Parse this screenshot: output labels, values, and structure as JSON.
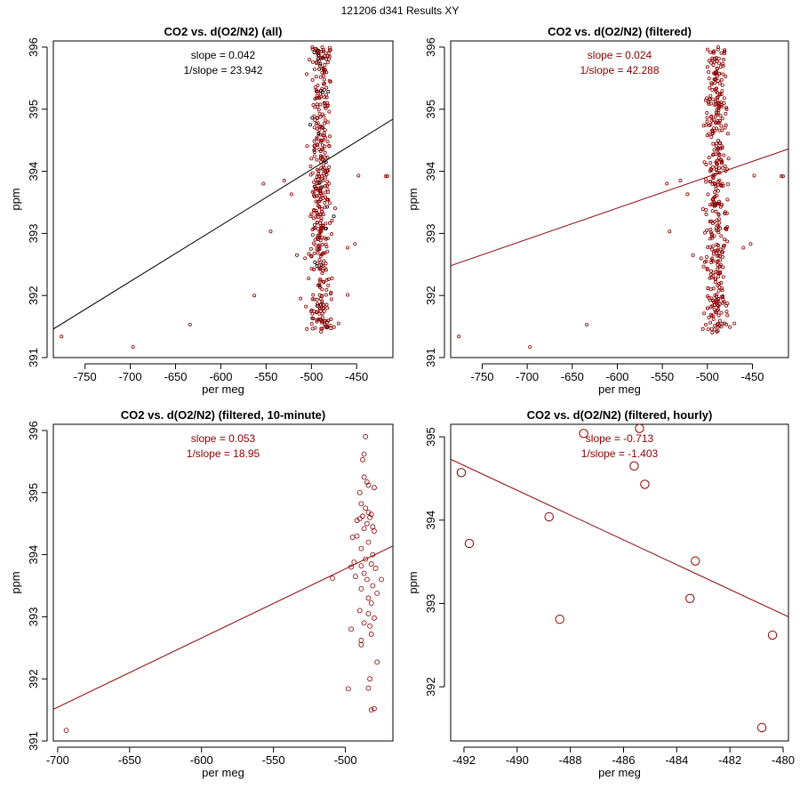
{
  "page_title": "121206   d341   Results XY",
  "colors": {
    "red": "#8b0000",
    "black": "#000000"
  },
  "chart_data": [
    {
      "type": "scatter",
      "title": "CO2 vs. d(O2/N2) (all)",
      "xlabel": "per meg",
      "ylabel": "ppm",
      "xlim": [
        -785,
        -410
      ],
      "ylim": [
        391,
        396.1
      ],
      "xticks": [
        -750,
        -700,
        -650,
        -600,
        -550,
        -500,
        -450
      ],
      "yticks": [
        391,
        392,
        393,
        394,
        395,
        396
      ],
      "stats": [
        "slope = 0.042",
        "1/slope = 23.942"
      ],
      "stats_color": "#000000",
      "line_color": "#000000",
      "line": {
        "x": [
          -785,
          -410
        ],
        "y": [
          391.46,
          394.84
        ]
      },
      "point_color": "#8b0000",
      "marker_radius": "small",
      "cluster": {
        "x_center": -490,
        "x_spread": 32,
        "y_range": [
          391.4,
          396
        ],
        "count": 420,
        "seed": 11
      },
      "points": [
        {
          "x": -776,
          "y": 391.34
        },
        {
          "x": -697,
          "y": 391.17
        },
        {
          "x": -634,
          "y": 391.53
        },
        {
          "x": -563,
          "y": 392.0
        },
        {
          "x": -553,
          "y": 393.8
        },
        {
          "x": -545,
          "y": 393.03
        },
        {
          "x": -530,
          "y": 393.85
        },
        {
          "x": -522,
          "y": 393.63
        },
        {
          "x": -516,
          "y": 392.65
        },
        {
          "x": -512,
          "y": 391.95
        },
        {
          "x": -507,
          "y": 392.6
        },
        {
          "x": -505,
          "y": 391.46
        },
        {
          "x": -460,
          "y": 392.77
        },
        {
          "x": -452,
          "y": 392.83
        },
        {
          "x": -448,
          "y": 393.93
        },
        {
          "x": -418,
          "y": 393.92
        },
        {
          "x": -416,
          "y": 393.92
        },
        {
          "x": -488,
          "y": 396.0
        },
        {
          "x": -493,
          "y": 395.93
        },
        {
          "x": -481,
          "y": 395.9
        },
        {
          "x": -475,
          "y": 391.49
        },
        {
          "x": -470,
          "y": 391.55
        },
        {
          "x": -460,
          "y": 392.01
        }
      ]
    },
    {
      "type": "scatter",
      "title": "CO2 vs. d(O2/N2) (filtered)",
      "xlabel": "per meg",
      "ylabel": "ppm",
      "xlim": [
        -785,
        -410
      ],
      "ylim": [
        391,
        396.1
      ],
      "xticks": [
        -750,
        -700,
        -650,
        -600,
        -550,
        -500,
        -450
      ],
      "yticks": [
        391,
        392,
        393,
        394,
        395,
        396
      ],
      "stats": [
        "slope = 0.024",
        "1/slope = 42.288"
      ],
      "stats_color": "#8b0000",
      "line_color": "#8b0000",
      "line": {
        "x": [
          -785,
          -410
        ],
        "y": [
          392.48,
          394.36
        ]
      },
      "point_color": "#8b0000",
      "marker_radius": "small",
      "cluster": {
        "x_center": -490,
        "x_spread": 32,
        "y_range": [
          391.4,
          396
        ],
        "count": 400,
        "seed": 29
      },
      "points": [
        {
          "x": -776,
          "y": 391.34
        },
        {
          "x": -697,
          "y": 391.17
        },
        {
          "x": -634,
          "y": 391.53
        },
        {
          "x": -545,
          "y": 393.8
        },
        {
          "x": -542,
          "y": 393.03
        },
        {
          "x": -530,
          "y": 393.85
        },
        {
          "x": -522,
          "y": 393.63
        },
        {
          "x": -516,
          "y": 392.65
        },
        {
          "x": -507,
          "y": 392.6
        },
        {
          "x": -505,
          "y": 391.46
        },
        {
          "x": -460,
          "y": 392.77
        },
        {
          "x": -452,
          "y": 392.83
        },
        {
          "x": -448,
          "y": 393.93
        },
        {
          "x": -418,
          "y": 393.92
        },
        {
          "x": -416,
          "y": 393.92
        },
        {
          "x": -488,
          "y": 396.0
        },
        {
          "x": -493,
          "y": 395.93
        },
        {
          "x": -481,
          "y": 395.9
        },
        {
          "x": -475,
          "y": 391.49
        },
        {
          "x": -470,
          "y": 391.55
        }
      ]
    },
    {
      "type": "scatter",
      "title": "CO2 vs. d(O2/N2) (filtered, 10-minute)",
      "xlabel": "per meg",
      "ylabel": "ppm",
      "xlim": [
        -703,
        -467
      ],
      "ylim": [
        391,
        396.1
      ],
      "xticks": [
        -700,
        -650,
        -600,
        -550,
        -500
      ],
      "yticks": [
        391,
        392,
        393,
        394,
        395,
        396
      ],
      "stats": [
        "slope = 0.053",
        "1/slope = 18.95"
      ],
      "stats_color": "#8b0000",
      "line_color": "#8b0000",
      "line": {
        "x": [
          -703,
          -467
        ],
        "y": [
          391.51,
          394.14
        ]
      },
      "point_color": "#8b0000",
      "marker_radius": "medium",
      "cluster": null,
      "points": [
        {
          "x": -694,
          "y": 391.17
        },
        {
          "x": -509,
          "y": 393.62
        },
        {
          "x": -498,
          "y": 391.84
        },
        {
          "x": -486,
          "y": 395.9
        },
        {
          "x": -487,
          "y": 395.62
        },
        {
          "x": -488,
          "y": 395.53
        },
        {
          "x": -487,
          "y": 395.25
        },
        {
          "x": -485,
          "y": 395.17
        },
        {
          "x": -484,
          "y": 395.12
        },
        {
          "x": -480,
          "y": 395.08
        },
        {
          "x": -490,
          "y": 395.0
        },
        {
          "x": -489,
          "y": 394.82
        },
        {
          "x": -486,
          "y": 394.75
        },
        {
          "x": -484,
          "y": 394.68
        },
        {
          "x": -482,
          "y": 394.65
        },
        {
          "x": -488,
          "y": 394.62
        },
        {
          "x": -490,
          "y": 394.58
        },
        {
          "x": -492,
          "y": 394.55
        },
        {
          "x": -483,
          "y": 394.6
        },
        {
          "x": -485,
          "y": 394.5
        },
        {
          "x": -481,
          "y": 394.45
        },
        {
          "x": -487,
          "y": 394.42
        },
        {
          "x": -480,
          "y": 394.38
        },
        {
          "x": -492,
          "y": 394.3
        },
        {
          "x": -495,
          "y": 394.28
        },
        {
          "x": -484,
          "y": 394.2
        },
        {
          "x": -489,
          "y": 394.1
        },
        {
          "x": -481,
          "y": 394.0
        },
        {
          "x": -486,
          "y": 393.93
        },
        {
          "x": -494,
          "y": 393.88
        },
        {
          "x": -482,
          "y": 393.85
        },
        {
          "x": -489,
          "y": 393.82
        },
        {
          "x": -496,
          "y": 393.8
        },
        {
          "x": -479,
          "y": 393.78
        },
        {
          "x": -487,
          "y": 393.7
        },
        {
          "x": -493,
          "y": 393.65
        },
        {
          "x": -485,
          "y": 393.6
        },
        {
          "x": -475,
          "y": 393.6
        },
        {
          "x": -481,
          "y": 393.5
        },
        {
          "x": -489,
          "y": 393.45
        },
        {
          "x": -478,
          "y": 393.38
        },
        {
          "x": -484,
          "y": 393.3
        },
        {
          "x": -482,
          "y": 393.22
        },
        {
          "x": -490,
          "y": 393.1
        },
        {
          "x": -484,
          "y": 393.05
        },
        {
          "x": -480,
          "y": 392.98
        },
        {
          "x": -487,
          "y": 392.9
        },
        {
          "x": -483,
          "y": 392.85
        },
        {
          "x": -496,
          "y": 392.8
        },
        {
          "x": -482,
          "y": 392.72
        },
        {
          "x": -489,
          "y": 392.62
        },
        {
          "x": -489,
          "y": 392.55
        },
        {
          "x": -478,
          "y": 392.27
        },
        {
          "x": -483,
          "y": 392.0
        },
        {
          "x": -484,
          "y": 391.85
        },
        {
          "x": -480,
          "y": 391.52
        },
        {
          "x": -482,
          "y": 391.5
        }
      ]
    },
    {
      "type": "scatter",
      "title": "CO2 vs. d(O2/N2) (filtered, hourly)",
      "xlabel": "per meg",
      "ylabel": "ppm",
      "xlim": [
        -492.5,
        -479.8
      ],
      "ylim": [
        391.35,
        395.15
      ],
      "xticks": [
        -492,
        -490,
        -488,
        -486,
        -484,
        -482,
        -480
      ],
      "yticks": [
        392,
        393,
        394,
        395
      ],
      "stats": [
        "slope = -0.713",
        "1/slope = -1.403"
      ],
      "stats_color": "#8b0000",
      "line_color": "#8b0000",
      "line": {
        "x": [
          -492.5,
          -479.8
        ],
        "y": [
          394.73,
          392.84
        ]
      },
      "point_color": "#8b0000",
      "marker_radius": "large",
      "cluster": null,
      "points": [
        {
          "x": -492.1,
          "y": 394.57
        },
        {
          "x": -491.8,
          "y": 393.72
        },
        {
          "x": -488.8,
          "y": 394.04
        },
        {
          "x": -488.4,
          "y": 392.81
        },
        {
          "x": -487.5,
          "y": 395.04
        },
        {
          "x": -485.6,
          "y": 394.65
        },
        {
          "x": -485.2,
          "y": 394.43
        },
        {
          "x": -483.5,
          "y": 393.06
        },
        {
          "x": -483.3,
          "y": 393.51
        },
        {
          "x": -480.8,
          "y": 391.51
        },
        {
          "x": -480.4,
          "y": 392.62
        },
        {
          "x": -485.4,
          "y": 395.1
        }
      ]
    }
  ]
}
